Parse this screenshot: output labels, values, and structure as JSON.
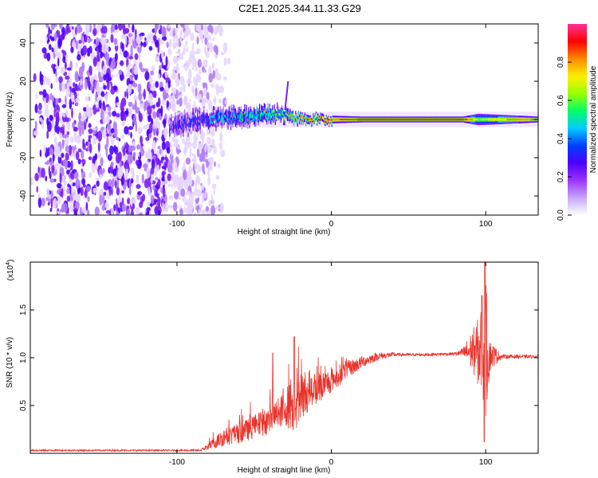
{
  "title": "C2E1.2025.344.11.33.G29",
  "colors": {
    "snr_line": "#e8342c",
    "cmap": [
      "#ffffff",
      "#e6d5ff",
      "#b07cf5",
      "#7a1ff0",
      "#4b00ff",
      "#0040ff",
      "#00ccff",
      "#00ff66",
      "#99ff00",
      "#ffee00",
      "#ff8800",
      "#ff0000",
      "#ff3399"
    ]
  },
  "chart_data": [
    {
      "type": "heatmap",
      "name": "spectrogram",
      "xlabel": "Height of straight line (km)",
      "ylabel": "Frequency (Hz)",
      "xlim": [
        -195,
        134
      ],
      "ylim": [
        -50,
        50
      ],
      "xticks": [
        -100,
        0,
        100
      ],
      "xtick_labels": [
        "-100",
        "0",
        "100"
      ],
      "yticks": [
        -40,
        -20,
        0,
        20,
        40
      ],
      "ytick_labels": [
        "-40",
        "-20",
        "0",
        "20",
        "40"
      ],
      "colorbar": {
        "label": "Normalized spectral amplitude",
        "range": [
          0,
          1
        ],
        "ticks": [
          0.0,
          0.2,
          0.4,
          0.6,
          0.8
        ],
        "tick_labels": [
          "0.0",
          "0.2",
          "0.4",
          "0.6",
          "0.8"
        ]
      },
      "features": {
        "noise_region_x": [
          -195,
          -85
        ],
        "signal_onset_x": -105,
        "trace": [
          {
            "x": -105,
            "center": -4,
            "width": 10,
            "amplitude": 0.3
          },
          {
            "x": -90,
            "center": -1,
            "width": 12,
            "amplitude": 0.35
          },
          {
            "x": -70,
            "center": 1,
            "width": 10,
            "amplitude": 0.45
          },
          {
            "x": -50,
            "center": 2,
            "width": 9,
            "amplitude": 0.55
          },
          {
            "x": -35,
            "center": 3,
            "width": 8,
            "amplitude": 0.6
          },
          {
            "x": -20,
            "center": 0,
            "width": 5,
            "amplitude": 0.75
          },
          {
            "x": 0,
            "center": 0,
            "width": 4,
            "amplitude": 0.85
          },
          {
            "x": 20,
            "center": 0,
            "width": 3,
            "amplitude": 0.95
          },
          {
            "x": 85,
            "center": 0,
            "width": 3,
            "amplitude": 0.95
          },
          {
            "x": 95,
            "center": 0,
            "width": 6,
            "amplitude": 0.7
          },
          {
            "x": 134,
            "center": 0,
            "width": 3,
            "amplitude": 0.9
          }
        ],
        "spike": {
          "x": -30,
          "f_from": 5,
          "f_to": 20
        }
      }
    },
    {
      "type": "line",
      "name": "snr",
      "xlabel": "Height of straight line (km)",
      "ylabel": "SNR (10 * v/v)",
      "y_multiplier": "(x10^4)",
      "y_multiplier_base": "(x10",
      "y_multiplier_exp": "4",
      "y_multiplier_close": ")",
      "xlim": [
        -195,
        134
      ],
      "ylim": [
        0,
        2.0
      ],
      "xticks": [
        -100,
        0,
        100
      ],
      "xtick_labels": [
        "-100",
        "0",
        "100"
      ],
      "yticks": [
        0.5,
        1.0,
        1.5
      ],
      "ytick_labels": [
        "0.5",
        "1.0",
        "1.5"
      ],
      "envelope": {
        "x": [
          -195,
          -85,
          -78,
          -70,
          -60,
          -50,
          -40,
          -30,
          -20,
          -10,
          0,
          10,
          20,
          30,
          40,
          60,
          80,
          88,
          92,
          95,
          98,
          100,
          103,
          108,
          134
        ],
        "y": [
          0.03,
          0.03,
          0.08,
          0.16,
          0.2,
          0.26,
          0.34,
          0.45,
          0.56,
          0.66,
          0.75,
          0.86,
          0.95,
          1.01,
          1.03,
          1.03,
          1.04,
          1.05,
          1.05,
          1.02,
          1.02,
          1.02,
          1.01,
          1.01,
          1.01
        ]
      },
      "noise_amplitude": {
        "x": [
          -195,
          -85,
          -78,
          -70,
          -55,
          -40,
          -30,
          -25,
          -15,
          0,
          20,
          35,
          45,
          80,
          85,
          92,
          96,
          100,
          103,
          110,
          134
        ],
        "y": [
          0.01,
          0.01,
          0.06,
          0.12,
          0.14,
          0.18,
          0.22,
          0.42,
          0.24,
          0.16,
          0.08,
          0.04,
          0.02,
          0.02,
          0.06,
          0.3,
          0.5,
          0.9,
          0.2,
          0.03,
          0.02
        ]
      },
      "peaks": [
        {
          "x": -24,
          "y": 1.22
        },
        {
          "x": -38,
          "y": 1.05
        },
        {
          "x": 99.5,
          "y": 2.0
        },
        {
          "x": 97.5,
          "y": 1.65
        },
        {
          "x": 99.0,
          "y": 0.12
        }
      ]
    }
  ]
}
